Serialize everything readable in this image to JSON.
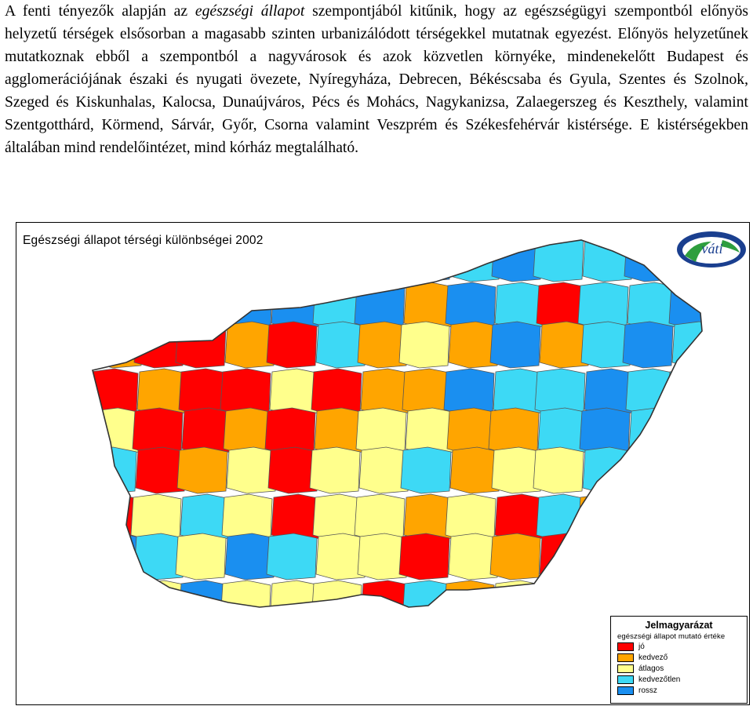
{
  "paragraph": {
    "before": "A fenti tényezők alapján az ",
    "emphasis": "egészségi állapot",
    "after": " szempontjából kitűnik, hogy az egészségügyi szempontból előnyös helyzetű térségek elsősorban a magasabb szinten urbanizálódott térségekkel mutatnak egyezést. Előnyös helyzetűnek mutatkoznak ebből a szempontból a nagyvárosok és azok közvetlen környéke, mindenekelőtt Budapest és agglomerációjának északi és nyugati övezete, Nyíregyháza, Debrecen, Békéscsaba és Gyula, Szentes és Szolnok, Szeged és Kiskunhalas, Kalocsa, Dunaújváros, Pécs és Mohács, Nagykanizsa, Zalaegerszeg és Keszthely, valamint Szentgotthárd, Körmend, Sárvár, Győr, Csorna valamint Veszprém és Székesfehérvár kistérsége. E kistérségekben általában mind rendelőintézet, mind kórház megtalálható."
  },
  "map": {
    "title": "Egészségi állapot térségi különbségei 2002",
    "logo_text": "váti",
    "logo_icon": "vati-logo-icon",
    "legend": {
      "title": "Jelmagyarázat",
      "subtitle": "egészségi állapot mutató értéke",
      "items": [
        {
          "label": "jó",
          "color": "#ff0000"
        },
        {
          "label": "kedvező",
          "color": "#ffa500"
        },
        {
          "label": "átlagos",
          "color": "#ffff8c"
        },
        {
          "label": "kedvezőtlen",
          "color": "#3dd9f5"
        },
        {
          "label": "rossz",
          "color": "#1a8ff0"
        }
      ]
    }
  }
}
